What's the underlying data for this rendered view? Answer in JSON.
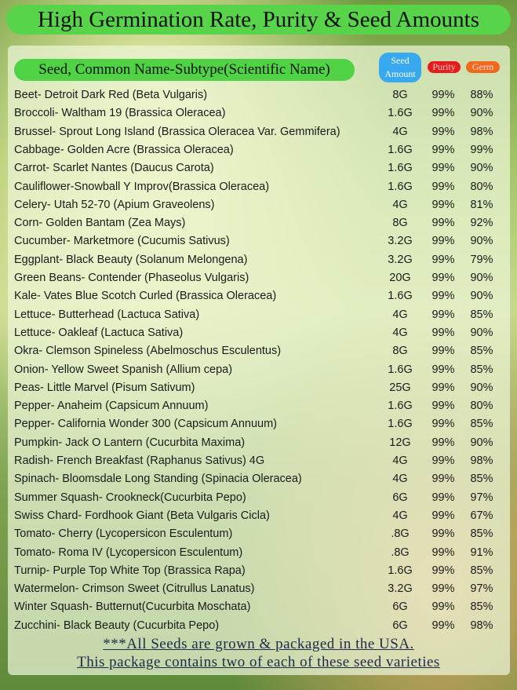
{
  "header": {
    "title": "High Germination Rate, Purity & Seed Amounts"
  },
  "table": {
    "header": [
      "Seed, Common Name-Subtype(Scientific Name)",
      "Seed Amount",
      "Purity",
      "Germ"
    ],
    "rows": [
      [
        "Beet- Detroit Dark Red (Beta Vulgaris)",
        "8G",
        "99%",
        "88%"
      ],
      [
        "Broccoli- Waltham 19 (Brassica Oleracea)",
        "1.6G",
        "99%",
        "90%"
      ],
      [
        "Brussel- Sprout Long Island (Brassica Oleracea Var. Gemmifera)",
        "4G",
        "99%",
        "98%"
      ],
      [
        "Cabbage- Golden Acre (Brassica Oleracea)",
        "1.6G",
        "99%",
        "99%"
      ],
      [
        "Carrot- Scarlet Nantes (Daucus Carota)",
        "1.6G",
        "99%",
        "90%"
      ],
      [
        "Cauliflower-Snowball Y Improv(Brassica Oleracea)",
        "1.6G",
        "99%",
        "80%"
      ],
      [
        "Celery- Utah 52-70 (Apium Graveolens)",
        "4G",
        "99%",
        "81%"
      ],
      [
        "Corn- Golden Bantam (Zea Mays)",
        "8G",
        "99%",
        "92%"
      ],
      [
        "Cucumber- Marketmore (Cucumis Sativus)",
        "3.2G",
        "99%",
        "90%"
      ],
      [
        "Eggplant- Black Beauty (Solanum Melongena)",
        "3.2G",
        "99%",
        "79%"
      ],
      [
        "Green Beans- Contender (Phaseolus Vulgaris)",
        "20G",
        "99%",
        "90%"
      ],
      [
        "Kale- Vates Blue Scotch Curled (Brassica Oleracea)",
        "1.6G",
        "99%",
        "90%"
      ],
      [
        "Lettuce- Butterhead (Lactuca Sativa)",
        "4G",
        "99%",
        "85%"
      ],
      [
        "Lettuce- Oakleaf (Lactuca Sativa)",
        "4G",
        "99%",
        "90%"
      ],
      [
        "Okra- Clemson Spineless (Abelmoschus Esculentus)",
        "8G",
        "99%",
        "85%"
      ],
      [
        "Onion- Yellow Sweet Spanish (Allium cepa)",
        "1.6G",
        "99%",
        "85%"
      ],
      [
        "Peas- Little Marvel (Pisum Sativum)",
        "25G",
        "99%",
        "90%"
      ],
      [
        "Pepper- Anaheim (Capsicum Annuum)",
        "1.6G",
        "99%",
        "80%"
      ],
      [
        "Pepper- California Wonder 300 (Capsicum Annuum)",
        "1.6G",
        "99%",
        "85%"
      ],
      [
        "Pumpkin- Jack O Lantern (Cucurbita Maxima)",
        "12G",
        "99%",
        "90%"
      ],
      [
        "Radish- French Breakfast (Raphanus Sativus) 4G",
        "4G",
        "99%",
        "98%"
      ],
      [
        "Spinach- Bloomsdale Long Standing (Spinacia Oleracea)",
        "4G",
        "99%",
        "85%"
      ],
      [
        "Summer Squash- Crookneck(Cucurbita Pepo)",
        "6G",
        "99%",
        "97%"
      ],
      [
        "Swiss Chard- Fordhook Giant (Beta Vulgaris Cicla)",
        "4G",
        "99%",
        "67%"
      ],
      [
        "Tomato- Cherry (Lycopersicon Esculentum)",
        ".8G",
        "99%",
        "85%"
      ],
      [
        "Tomato- Roma IV (Lycopersicon Esculentum)",
        ".8G",
        "99%",
        "91%"
      ],
      [
        "Turnip- Purple Top White Top (Brassica Rapa)",
        "1.6G",
        "99%",
        "85%"
      ],
      [
        "Watermelon- Crimson Sweet (Citrullus Lanatus)",
        "3.2G",
        "99%",
        "97%"
      ],
      [
        "Winter Squash- Butternut(Cucurbita Moschata)",
        "6G",
        "99%",
        "85%"
      ],
      [
        "Zucchini- Black Beauty (Cucurbita Pepo)",
        "6G",
        "99%",
        "98%"
      ]
    ]
  },
  "footer": [
    "***All Seeds are grown & packaged in the USA.",
    "This package contains two of each of these seed varieties"
  ]
}
